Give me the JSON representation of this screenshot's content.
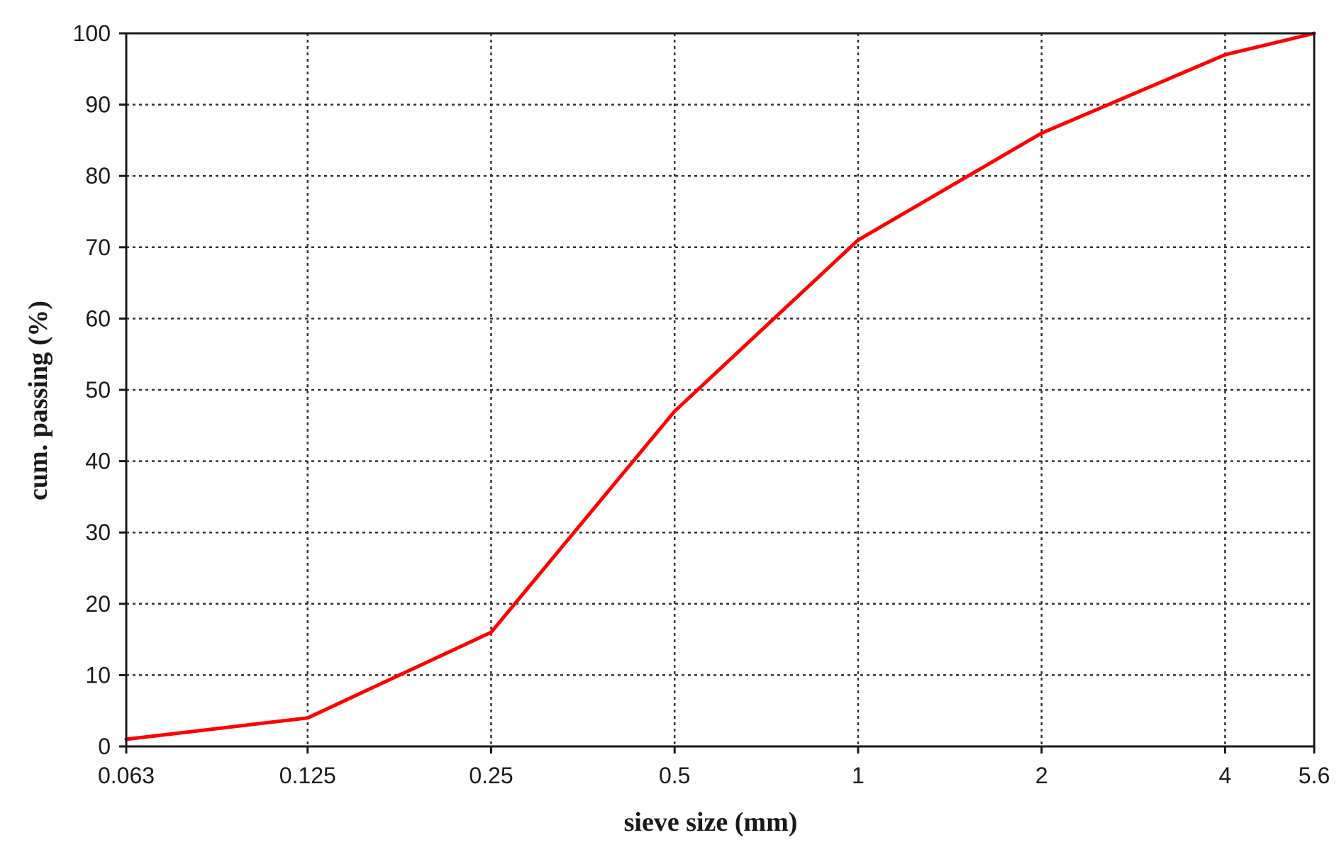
{
  "chart_data": {
    "type": "line",
    "title": "",
    "xlabel": "sieve size (mm)",
    "ylabel": "cum. passing (%)",
    "x_scale": "log",
    "x_ticks": [
      "0.063",
      "0.125",
      "0.25",
      "0.5",
      "1",
      "2",
      "4",
      "5.6"
    ],
    "y_ticks": [
      "0",
      "10",
      "20",
      "30",
      "40",
      "50",
      "60",
      "70",
      "80",
      "90",
      "100"
    ],
    "xlim": [
      0.063,
      5.6
    ],
    "ylim": [
      0,
      100
    ],
    "grid": true,
    "legend": "none",
    "series": [
      {
        "color": "#ff0000",
        "x": [
          0.063,
          0.125,
          0.25,
          0.5,
          1,
          2,
          4,
          5.6
        ],
        "y": [
          1,
          4,
          16,
          47,
          71,
          86,
          97,
          100
        ]
      }
    ]
  }
}
